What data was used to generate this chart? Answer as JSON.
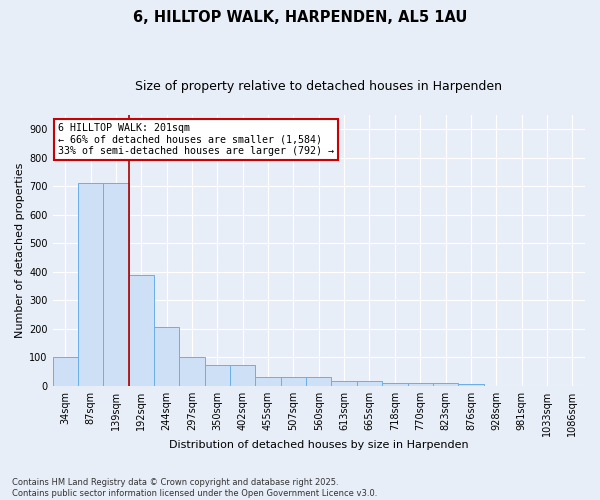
{
  "title": "6, HILLTOP WALK, HARPENDEN, AL5 1AU",
  "subtitle": "Size of property relative to detached houses in Harpenden",
  "xlabel": "Distribution of detached houses by size in Harpenden",
  "ylabel": "Number of detached properties",
  "categories": [
    "34sqm",
    "87sqm",
    "139sqm",
    "192sqm",
    "244sqm",
    "297sqm",
    "350sqm",
    "402sqm",
    "455sqm",
    "507sqm",
    "560sqm",
    "613sqm",
    "665sqm",
    "718sqm",
    "770sqm",
    "823sqm",
    "876sqm",
    "928sqm",
    "981sqm",
    "1033sqm",
    "1086sqm"
  ],
  "values": [
    100,
    710,
    710,
    390,
    207,
    100,
    72,
    72,
    30,
    32,
    32,
    18,
    18,
    10,
    10,
    10,
    5,
    0,
    0,
    0,
    0
  ],
  "bar_color": "#cde0f5",
  "bar_edge_color": "#6aaee8",
  "bar_linewidth": 0.7,
  "vline_index": 2.5,
  "vline_color": "#aa0000",
  "vline_linewidth": 1.2,
  "annotation_text": "6 HILLTOP WALK: 201sqm\n← 66% of detached houses are smaller (1,584)\n33% of semi-detached houses are larger (792) →",
  "annotation_box_color": "white",
  "annotation_box_edge": "#cc0000",
  "ylim": [
    0,
    950
  ],
  "yticks": [
    0,
    100,
    200,
    300,
    400,
    500,
    600,
    700,
    800,
    900
  ],
  "background_color": "#e8eef8",
  "grid_color": "#ffffff",
  "title_fontsize": 10.5,
  "subtitle_fontsize": 9,
  "tick_fontsize": 7,
  "xlabel_fontsize": 8,
  "ylabel_fontsize": 8,
  "footer": "Contains HM Land Registry data © Crown copyright and database right 2025.\nContains public sector information licensed under the Open Government Licence v3.0."
}
